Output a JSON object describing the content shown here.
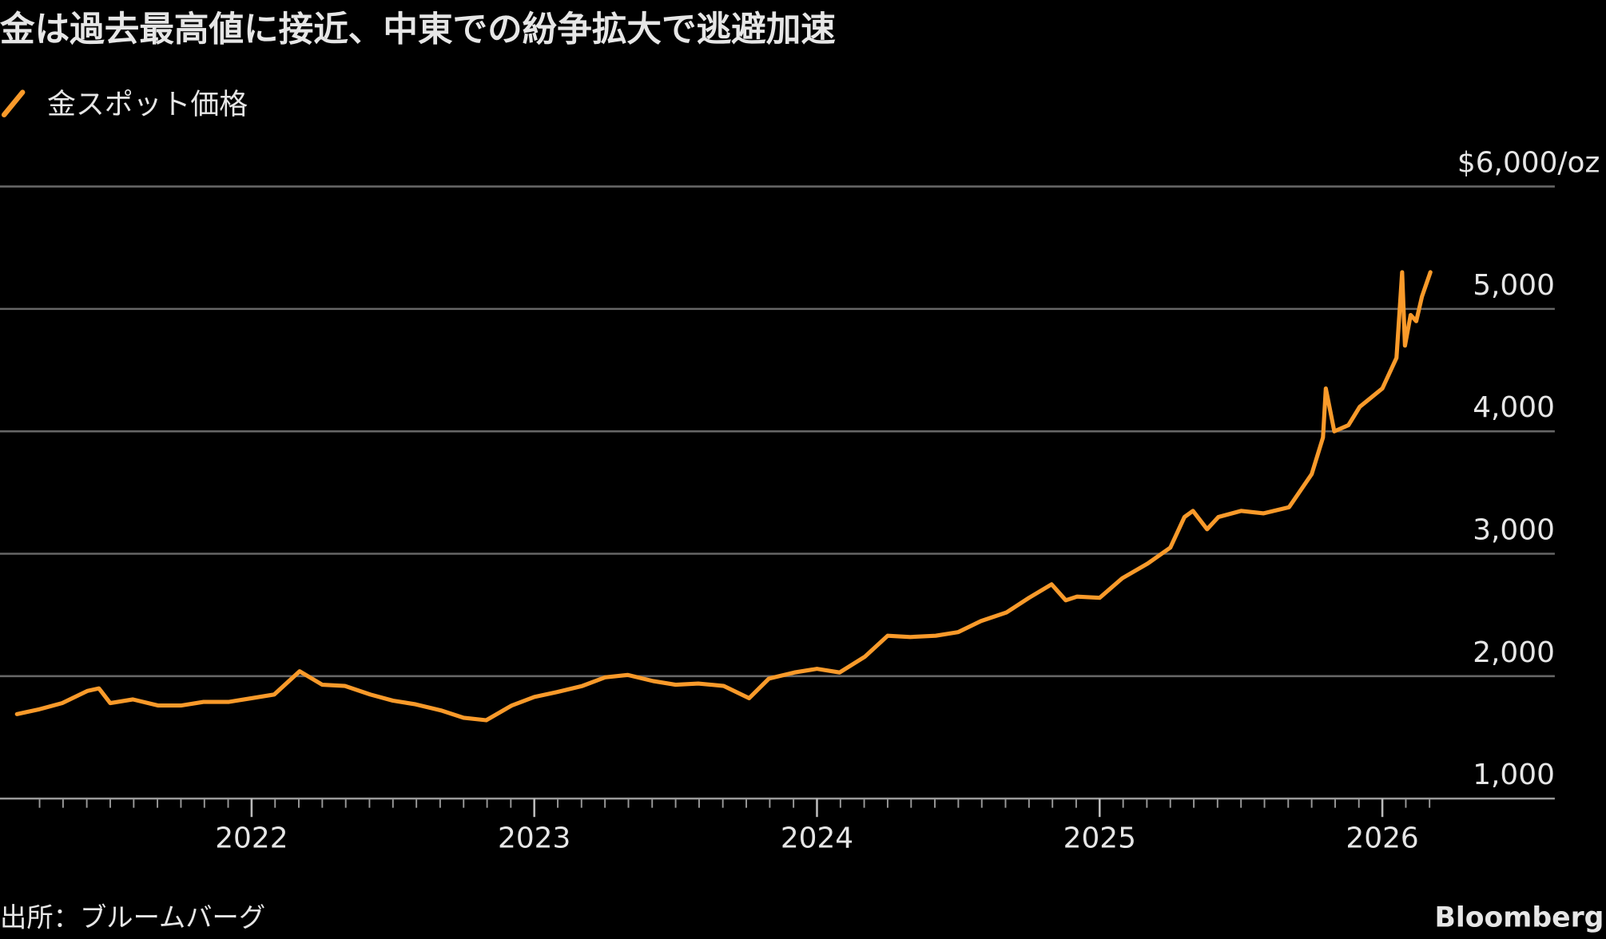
{
  "chart_data": {
    "type": "line",
    "title": "金は過去最高値に接近、中東での紛争拡大で逃避加速",
    "source": "出所：ブルームバーグ",
    "brand": "Bloomberg",
    "x": [
      2021.17,
      2021.25,
      2021.33,
      2021.42,
      2021.46,
      2021.5,
      2021.58,
      2021.67,
      2021.75,
      2021.83,
      2021.92,
      2022.0,
      2022.08,
      2022.17,
      2022.25,
      2022.33,
      2022.42,
      2022.5,
      2022.58,
      2022.67,
      2022.75,
      2022.83,
      2022.92,
      2023.0,
      2023.08,
      2023.17,
      2023.25,
      2023.33,
      2023.42,
      2023.5,
      2023.58,
      2023.67,
      2023.76,
      2023.83,
      2023.92,
      2024.0,
      2024.08,
      2024.17,
      2024.25,
      2024.33,
      2024.42,
      2024.5,
      2024.58,
      2024.67,
      2024.75,
      2024.83,
      2024.88,
      2024.92,
      2025.0,
      2025.08,
      2025.17,
      2025.25,
      2025.3,
      2025.33,
      2025.38,
      2025.42,
      2025.5,
      2025.58,
      2025.67,
      2025.75,
      2025.79,
      2025.8,
      2025.83,
      2025.88,
      2025.92,
      2026.0,
      2026.05,
      2026.07,
      2026.08,
      2026.1,
      2026.12,
      2026.14,
      2026.17
    ],
    "series": [
      {
        "name": "金スポット価格",
        "color": "#f99a2a",
        "values": [
          1690,
          1730,
          1780,
          1880,
          1900,
          1780,
          1810,
          1760,
          1760,
          1790,
          1790,
          1820,
          1850,
          2040,
          1930,
          1920,
          1850,
          1800,
          1770,
          1720,
          1660,
          1640,
          1760,
          1830,
          1870,
          1920,
          1990,
          2010,
          1960,
          1930,
          1940,
          1920,
          1820,
          1980,
          2030,
          2060,
          2030,
          2160,
          2330,
          2320,
          2330,
          2360,
          2450,
          2520,
          2640,
          2750,
          2620,
          2650,
          2640,
          2800,
          2920,
          3050,
          3300,
          3350,
          3200,
          3300,
          3350,
          3330,
          3380,
          3650,
          3950,
          4350,
          4000,
          4050,
          4200,
          4350,
          4600,
          5300,
          4700,
          4950,
          4900,
          5100,
          5300
        ]
      }
    ],
    "xlim": [
      2021.11,
      2026.61
    ],
    "xticks": [
      2022,
      2023,
      2024,
      2025,
      2026
    ],
    "xminorticks": [
      2021.25,
      2021.333,
      2021.417,
      2021.5,
      2021.583,
      2021.667,
      2021.75,
      2021.833,
      2021.917,
      2022.083,
      2022.167,
      2022.25,
      2022.333,
      2022.417,
      2022.5,
      2022.583,
      2022.667,
      2022.75,
      2022.833,
      2022.917,
      2023.083,
      2023.167,
      2023.25,
      2023.333,
      2023.417,
      2023.5,
      2023.583,
      2023.667,
      2023.75,
      2023.833,
      2023.917,
      2024.083,
      2024.167,
      2024.25,
      2024.333,
      2024.417,
      2024.5,
      2024.583,
      2024.667,
      2024.75,
      2024.833,
      2024.917,
      2025.083,
      2025.167,
      2025.25,
      2025.333,
      2025.417,
      2025.5,
      2025.583,
      2025.667,
      2025.75,
      2025.833,
      2025.917,
      2026.083,
      2026.167
    ],
    "ylim": [
      1000,
      6000
    ],
    "yticks": [
      {
        "value": 1000,
        "label": "1,000"
      },
      {
        "value": 2000,
        "label": "2,000"
      },
      {
        "value": 3000,
        "label": "3,000"
      },
      {
        "value": 4000,
        "label": "4,000"
      },
      {
        "value": 5000,
        "label": "5,000"
      },
      {
        "value": 6000,
        "label": "$6,000/oz"
      }
    ],
    "grid": true
  }
}
